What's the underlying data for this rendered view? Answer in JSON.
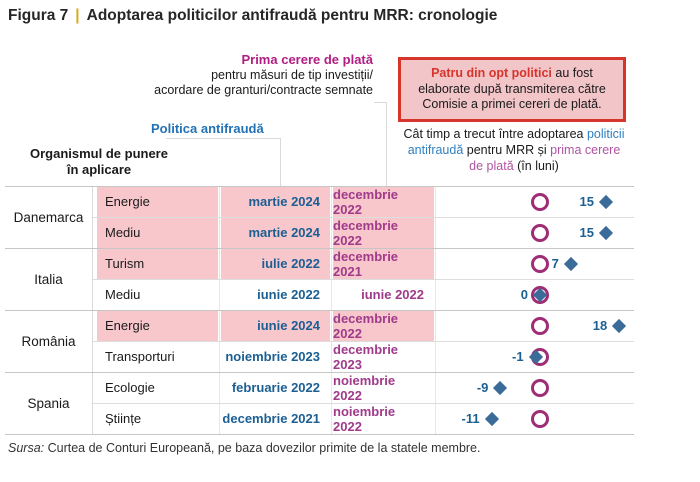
{
  "figure": {
    "label": "Figura 7",
    "separator": "|",
    "title": "Adoptarea politicilor antifraudă pentru MRR: cronologie"
  },
  "header": {
    "first_payment": {
      "line1": "Prima cerere de plată",
      "line2": "pentru măsuri de tip investiții/",
      "line3": "acordare de granturi/contracte semnate"
    },
    "antifraud_label": "Politica antifraudă",
    "body_label": {
      "line1": "Organismul de punere",
      "line2": "în aplicare"
    }
  },
  "callout": {
    "highlight": "Patru din opt politici",
    "rest": " au fost elaborate după transmiterea către Comisie a primei cereri de plată."
  },
  "question": {
    "text1": "Cât timp a trecut între adoptarea ",
    "antifraud": "politicii antifraudă",
    "text2": " pentru MRR și ",
    "payment": "prima cerere de plată",
    "text3": " (în luni)"
  },
  "chart_data": {
    "type": "table",
    "title": "Adoptarea politicilor antifraudă pentru MRR: cronologie",
    "value_unit": "luni",
    "marker_legend": {
      "circle": "prima cerere de plată (reper 0)",
      "diamond": "politica antifraudă"
    },
    "groups": [
      {
        "country": "Danemarca",
        "rows": [
          {
            "sector": "Energie",
            "antifraud_policy": "martie 2024",
            "first_payment": "decembrie 2022",
            "months": 15,
            "highlighted": true
          },
          {
            "sector": "Mediu",
            "antifraud_policy": "martie 2024",
            "first_payment": "decembrie 2022",
            "months": 15,
            "highlighted": true
          }
        ]
      },
      {
        "country": "Italia",
        "rows": [
          {
            "sector": "Turism",
            "antifraud_policy": "iulie 2022",
            "first_payment": "decembrie 2021",
            "months": 7,
            "highlighted": true
          },
          {
            "sector": "Mediu",
            "antifraud_policy": "iunie 2022",
            "first_payment": "iunie 2022",
            "months": 0,
            "highlighted": false
          }
        ]
      },
      {
        "country": "România",
        "rows": [
          {
            "sector": "Energie",
            "antifraud_policy": "iunie 2024",
            "first_payment": "decembrie 2022",
            "months": 18,
            "highlighted": true
          },
          {
            "sector": "Transporturi",
            "antifraud_policy": "noiembrie 2023",
            "first_payment": "decembrie 2023",
            "months": -1,
            "highlighted": false
          }
        ]
      },
      {
        "country": "Spania",
        "rows": [
          {
            "sector": "Ecologie",
            "antifraud_policy": "februarie 2022",
            "first_payment": "noiembrie 2022",
            "months": -9,
            "highlighted": false
          },
          {
            "sector": "Științe",
            "antifraud_policy": "decembrie 2021",
            "first_payment": "noiembrie 2022",
            "months": -11,
            "highlighted": false
          }
        ]
      }
    ]
  },
  "footer": {
    "source_label": "Sursa:",
    "source_text": " Curtea de Conturi Europeană, pe baza dovezilor primite de la statele membre."
  },
  "colors": {
    "antifraud_blue": "#2272b5",
    "payment_magenta": "#b01d83",
    "date_blue": "#1b5f93",
    "date_magenta": "#a03a8a",
    "diamond_blue": "#3a6b99",
    "circle_magenta": "#9e2d75",
    "highlight_pink": "#f8c7cc",
    "callout_red": "#d6352c",
    "callout_pink": "#f2c5c9",
    "title_pipe_gold": "#d9a81e"
  }
}
